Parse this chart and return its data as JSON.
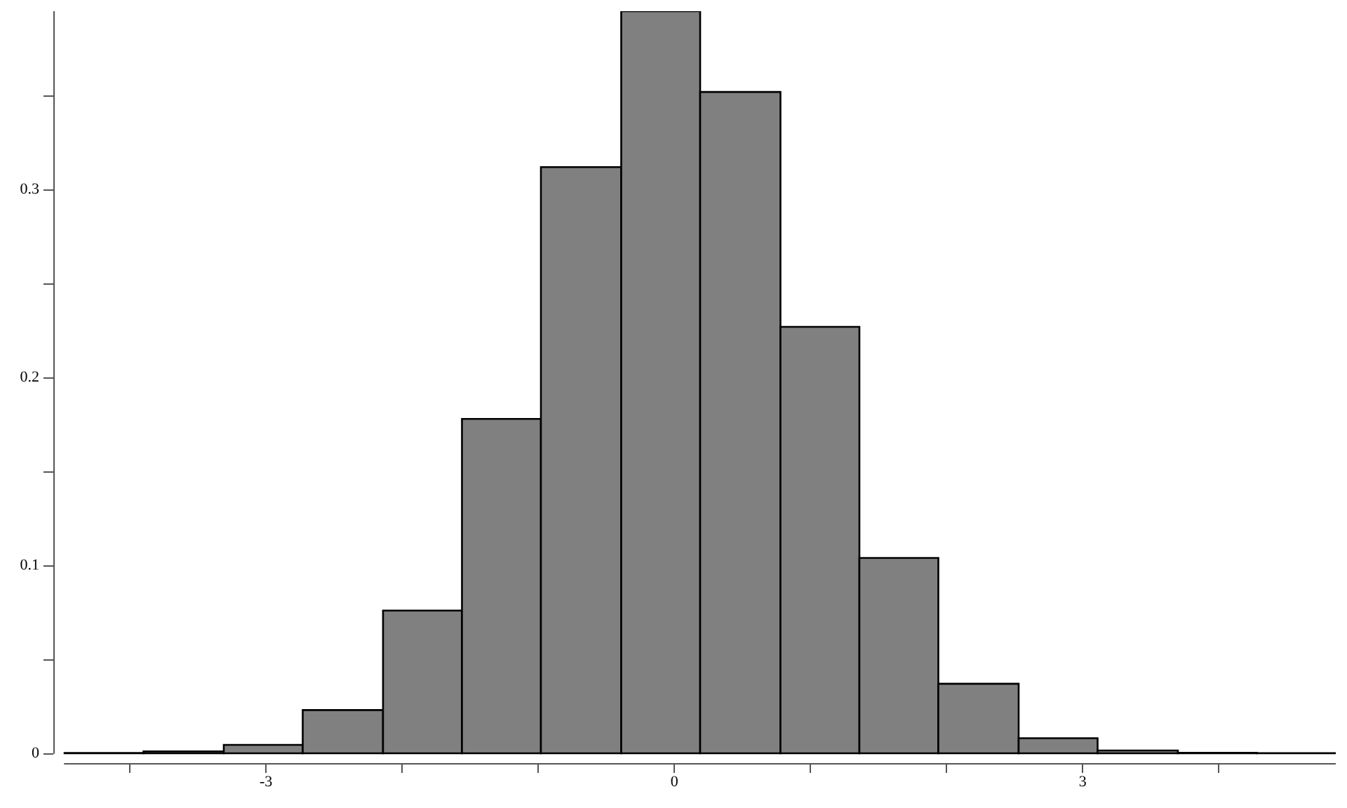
{
  "chart_data": {
    "type": "histogram",
    "bins": [
      -4.48,
      -3.9,
      -3.31,
      -2.73,
      -2.14,
      -1.56,
      -0.98,
      -0.39,
      0.19,
      0.78,
      1.36,
      1.94,
      2.53,
      3.11,
      3.7,
      4.28,
      4.86
    ],
    "values": [
      0.0002,
      0.001,
      0.0045,
      0.023,
      0.076,
      0.178,
      0.312,
      0.395,
      0.352,
      0.227,
      0.104,
      0.037,
      0.008,
      0.0015,
      0.0003,
      0.0001
    ],
    "color": "#808080",
    "xlim": [
      -4.48,
      4.86
    ],
    "ylim": [
      0,
      0.395
    ],
    "xticks": [
      {
        "value": -4,
        "label": null
      },
      -3,
      {
        "value": -2,
        "label": null
      },
      {
        "value": -1,
        "label": null
      },
      0,
      {
        "value": 1,
        "label": null
      },
      {
        "value": 2,
        "label": null
      },
      3,
      {
        "value": 4,
        "label": null
      }
    ],
    "yticks": [
      0,
      {
        "value": 0.05,
        "label": null
      },
      0.1,
      {
        "value": 0.15,
        "label": null
      },
      0.2,
      {
        "value": 0.25,
        "label": null
      },
      0.3,
      {
        "value": 0.35,
        "label": null
      }
    ]
  }
}
